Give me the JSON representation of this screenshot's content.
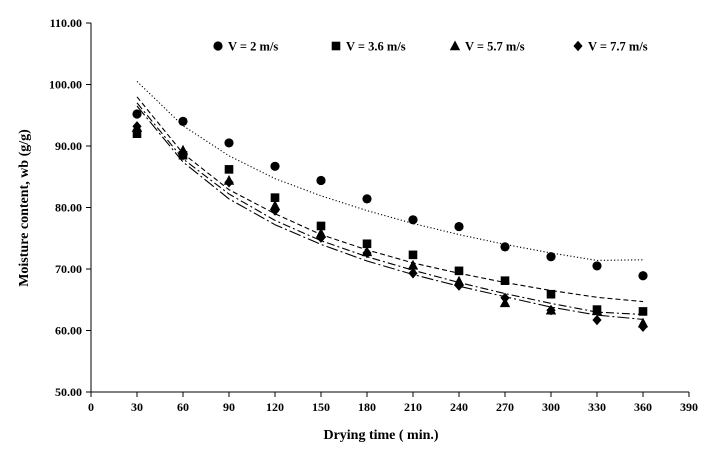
{
  "chart_data": {
    "type": "scatter",
    "title": "",
    "xlabel": "Drying time ( min.)",
    "ylabel": "Moisture content, wb (g/g)",
    "xlim": [
      0,
      390
    ],
    "ylim": [
      50,
      110
    ],
    "x_ticks": [
      0,
      30,
      60,
      90,
      120,
      150,
      180,
      210,
      240,
      270,
      300,
      330,
      360,
      390
    ],
    "y_ticks": [
      "50.00",
      "60.00",
      "70.00",
      "80.00",
      "90.00",
      "100.00",
      "110.00"
    ],
    "grid": false,
    "legend_position": "top",
    "x": [
      30,
      60,
      90,
      120,
      150,
      180,
      210,
      240,
      270,
      300,
      330,
      360
    ],
    "series": [
      {
        "name": "V = 2 m/s",
        "marker": "circle",
        "line": "dotted",
        "values": [
          95.2,
          94.0,
          90.5,
          86.7,
          84.4,
          81.4,
          78.0,
          76.9,
          73.6,
          72.0,
          70.5,
          68.9
        ],
        "fit": [
          100.5,
          93.3,
          88.4,
          84.7,
          81.9,
          79.5,
          77.4,
          75.6,
          74.0,
          72.6,
          71.4,
          71.5
        ]
      },
      {
        "name": "V = 3.6 m/s",
        "marker": "square",
        "line": "dashed",
        "values": [
          92.0,
          88.5,
          86.2,
          81.6,
          77.0,
          74.1,
          72.3,
          69.7,
          68.1,
          65.9,
          63.4,
          63.1
        ],
        "fit": [
          98.0,
          88.8,
          82.9,
          79.0,
          75.6,
          73.1,
          71.0,
          69.3,
          67.8,
          66.5,
          65.4,
          64.7
        ]
      },
      {
        "name": "V = 5.7 m/s",
        "marker": "triangle",
        "line": "dash-dot",
        "values": [
          93.0,
          89.3,
          84.4,
          80.3,
          75.8,
          72.8,
          70.6,
          68.0,
          64.5,
          63.3,
          63.2,
          61.2
        ],
        "fit": [
          97.0,
          87.9,
          82.2,
          77.9,
          74.6,
          72.0,
          69.8,
          67.8,
          66.0,
          64.4,
          63.0,
          62.6
        ]
      },
      {
        "name": "V = 7.7 m/s",
        "marker": "diamond",
        "line": "long-dash-dot",
        "values": [
          93.2,
          88.5,
          84.1,
          79.5,
          75.1,
          72.6,
          69.3,
          67.3,
          65.3,
          63.3,
          61.7,
          60.6
        ],
        "fit": [
          96.5,
          87.4,
          81.4,
          77.2,
          74.0,
          71.3,
          69.1,
          67.2,
          65.5,
          63.8,
          62.5,
          61.8
        ]
      }
    ]
  }
}
